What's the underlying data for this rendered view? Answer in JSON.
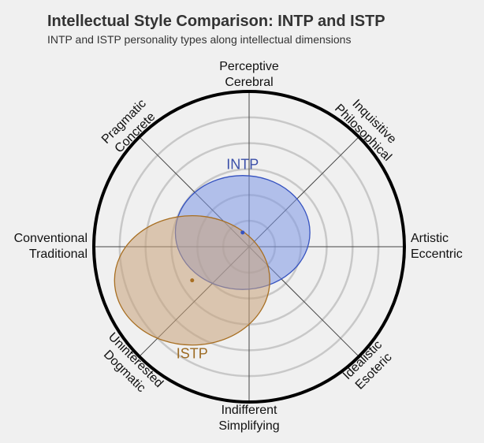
{
  "chart_data": {
    "type": "polar-ellipse",
    "title": "Intellectual Style Comparison: INTP and ISTP",
    "subtitle": "INTP and ISTP personality types along intellectual dimensions",
    "axis_labels": [
      [
        "Perceptive",
        "Cerebral"
      ],
      [
        "Inquisitive",
        "Philosophical"
      ],
      [
        "Artistic",
        "Eccentric"
      ],
      [
        "Idealistic",
        "Esoteric"
      ],
      [
        "Indifferent",
        "Simplifying"
      ],
      [
        "Uninterested",
        "Dogmatic"
      ],
      [
        "Conventional",
        "Traditional"
      ],
      [
        "Pragmatic",
        "Concrete"
      ]
    ],
    "rlim": [
      0,
      6
    ],
    "rticks": [
      1,
      2,
      3,
      4,
      5
    ],
    "series": [
      {
        "name": "INTP",
        "color": "#3552c0",
        "fill": "#7d97e6",
        "label_color": "#3a4ea8",
        "x": -0.25,
        "y": 0.55,
        "rx": 2.6,
        "ry": 2.2
      },
      {
        "name": "ISTP",
        "color": "#a86f22",
        "fill": "#c9a27a",
        "label_color": "#9c6a22",
        "x": -2.2,
        "y": -1.3,
        "rx": 3.0,
        "ry": 2.5
      }
    ]
  }
}
